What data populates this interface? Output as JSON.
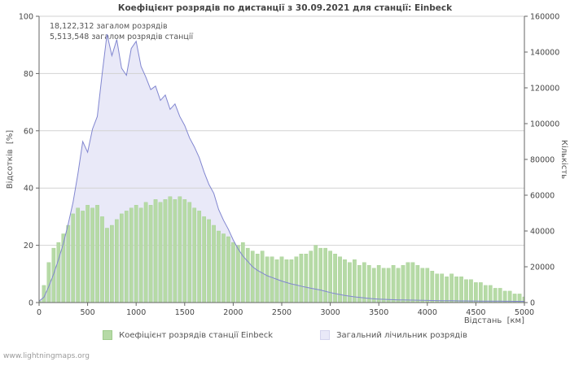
{
  "title": "Коефіцієнт розрядів по дистанції з 30.09.2021 для станції: Einbeck",
  "annotations": {
    "total_strokes": "18,122,312 загалом розрядів",
    "station_strokes": "5,513,548 загалом розрядів станції"
  },
  "axes": {
    "left_label": "Відсотків  [%]",
    "right_label": "Кількість",
    "x_label": "Відстань  [км]"
  },
  "legend": [
    {
      "label": "Коефіцієнт розрядів станції Einbeck",
      "color": "#b6daa6",
      "border": "#9fcc8c"
    },
    {
      "label": "Загальний лічильник розрядів",
      "color": "#e9e9f8",
      "border": "#d4d4ee"
    }
  ],
  "watermark": "www.lightningmaps.org",
  "colors": {
    "bar_fill": "#b6daa6",
    "bar_stroke": "#a3cf90",
    "area_fill": "#e9e9f8",
    "line_stroke": "#8186d0",
    "grid": "#d2d2d2",
    "axis": "#666666"
  },
  "chart_data": {
    "type": "bar",
    "title": "Коефіцієнт розрядів по дистанції з 30.09.2021 для станції: Einbeck",
    "xlabel": "Відстань [км]",
    "left_ylabel": "Відсотків [%]",
    "right_ylabel": "Кількість",
    "x_range": [
      0,
      5000
    ],
    "left_ylim": [
      0,
      100
    ],
    "right_ylim": [
      0,
      160000
    ],
    "x_ticks": [
      0,
      500,
      1000,
      1500,
      2000,
      2500,
      3000,
      3500,
      4000,
      4500,
      5000
    ],
    "left_ticks": [
      0,
      20,
      40,
      60,
      80,
      100
    ],
    "right_ticks": [
      0,
      20000,
      40000,
      60000,
      80000,
      100000,
      120000,
      140000,
      160000
    ],
    "grid": true,
    "legend_position": "bottom",
    "x_km": [
      0,
      50,
      100,
      150,
      200,
      250,
      300,
      350,
      400,
      450,
      500,
      550,
      600,
      650,
      700,
      750,
      800,
      850,
      900,
      950,
      1000,
      1050,
      1100,
      1150,
      1200,
      1250,
      1300,
      1350,
      1400,
      1450,
      1500,
      1550,
      1600,
      1650,
      1700,
      1750,
      1800,
      1850,
      1900,
      1950,
      2000,
      2050,
      2100,
      2150,
      2200,
      2250,
      2300,
      2350,
      2400,
      2450,
      2500,
      2550,
      2600,
      2650,
      2700,
      2750,
      2800,
      2850,
      2900,
      2950,
      3000,
      3050,
      3100,
      3150,
      3200,
      3250,
      3300,
      3350,
      3400,
      3450,
      3500,
      3550,
      3600,
      3650,
      3700,
      3750,
      3800,
      3850,
      3900,
      3950,
      4000,
      4050,
      4100,
      4150,
      4200,
      4250,
      4300,
      4350,
      4400,
      4450,
      4500,
      4550,
      4600,
      4650,
      4700,
      4750,
      4800,
      4850,
      4900,
      4950,
      5000
    ],
    "series": [
      {
        "name": "Коефіцієнт розрядів станції Einbeck",
        "type": "bar",
        "axis": "left",
        "unit": "%",
        "values": [
          0.5,
          6,
          14,
          19,
          21,
          24,
          27,
          31,
          33,
          32,
          34,
          33,
          34,
          30,
          26,
          27,
          29,
          31,
          32,
          33,
          34,
          33,
          35,
          34,
          36,
          35,
          36,
          37,
          36,
          37,
          36,
          35,
          33,
          32,
          30,
          29,
          27,
          25,
          24,
          23,
          21,
          20,
          21,
          19,
          18,
          17,
          18,
          16,
          16,
          15,
          16,
          15,
          15,
          16,
          17,
          17,
          18,
          20,
          19,
          19,
          18,
          17,
          16,
          15,
          14,
          15,
          13,
          14,
          13,
          12,
          13,
          12,
          12,
          13,
          12,
          13,
          14,
          14,
          13,
          12,
          12,
          11,
          10,
          10,
          9,
          10,
          9,
          9,
          8,
          8,
          7,
          7,
          6,
          6,
          5,
          5,
          4,
          4,
          3,
          3,
          2
        ]
      },
      {
        "name": "Загальний лічильник розрядів",
        "type": "area-line",
        "axis": "right",
        "unit": "count",
        "values": [
          800,
          3000,
          9000,
          16000,
          24000,
          33000,
          44000,
          56000,
          72000,
          90000,
          84000,
          97000,
          104000,
          128000,
          150000,
          138000,
          147000,
          131000,
          127000,
          142000,
          146000,
          132000,
          126000,
          119000,
          121000,
          113000,
          116000,
          108000,
          111000,
          104000,
          99000,
          92000,
          87000,
          81000,
          73000,
          66000,
          61000,
          52000,
          46000,
          41000,
          35000,
          30000,
          26000,
          23000,
          20000,
          18000,
          16500,
          15000,
          14000,
          13000,
          12000,
          11200,
          10400,
          9800,
          9200,
          8600,
          8000,
          7500,
          7000,
          6300,
          5600,
          5000,
          4500,
          4000,
          3600,
          3200,
          2900,
          2600,
          2300,
          2100,
          1900,
          1800,
          1700,
          1600,
          1500,
          1450,
          1400,
          1350,
          1300,
          1250,
          1200,
          1150,
          1100,
          1050,
          1000,
          980,
          950,
          920,
          900,
          880,
          860,
          840,
          820,
          800,
          780,
          760,
          740,
          720,
          700,
          680,
          660
        ]
      }
    ]
  }
}
